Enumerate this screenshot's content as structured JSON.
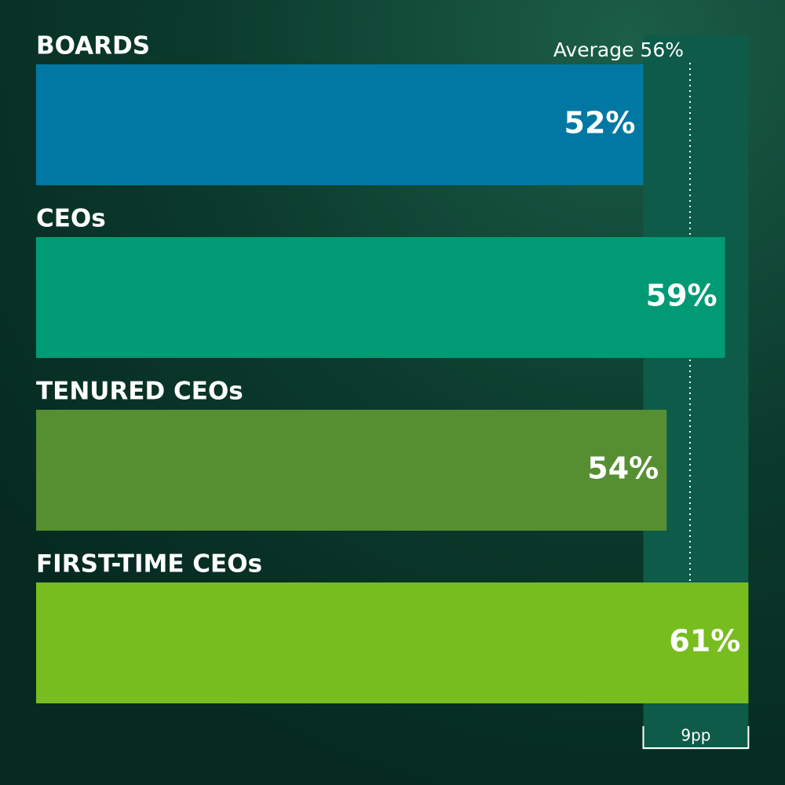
{
  "chart_data": {
    "type": "hbar",
    "categories": [
      "BOARDS",
      "CEOs",
      "TENURED CEOs",
      "FIRST-TIME CEOs"
    ],
    "values": [
      52,
      59,
      54,
      61
    ],
    "value_labels": [
      "52%",
      "59%",
      "54%",
      "61%"
    ],
    "colors": [
      "#0078a3",
      "#009a74",
      "#568f32",
      "#78bd1f"
    ],
    "xlim": [
      0,
      64
    ],
    "average": {
      "value": 56,
      "label": "Average 56%"
    },
    "range": {
      "from": 52,
      "to": 61,
      "label": "9pp"
    }
  }
}
